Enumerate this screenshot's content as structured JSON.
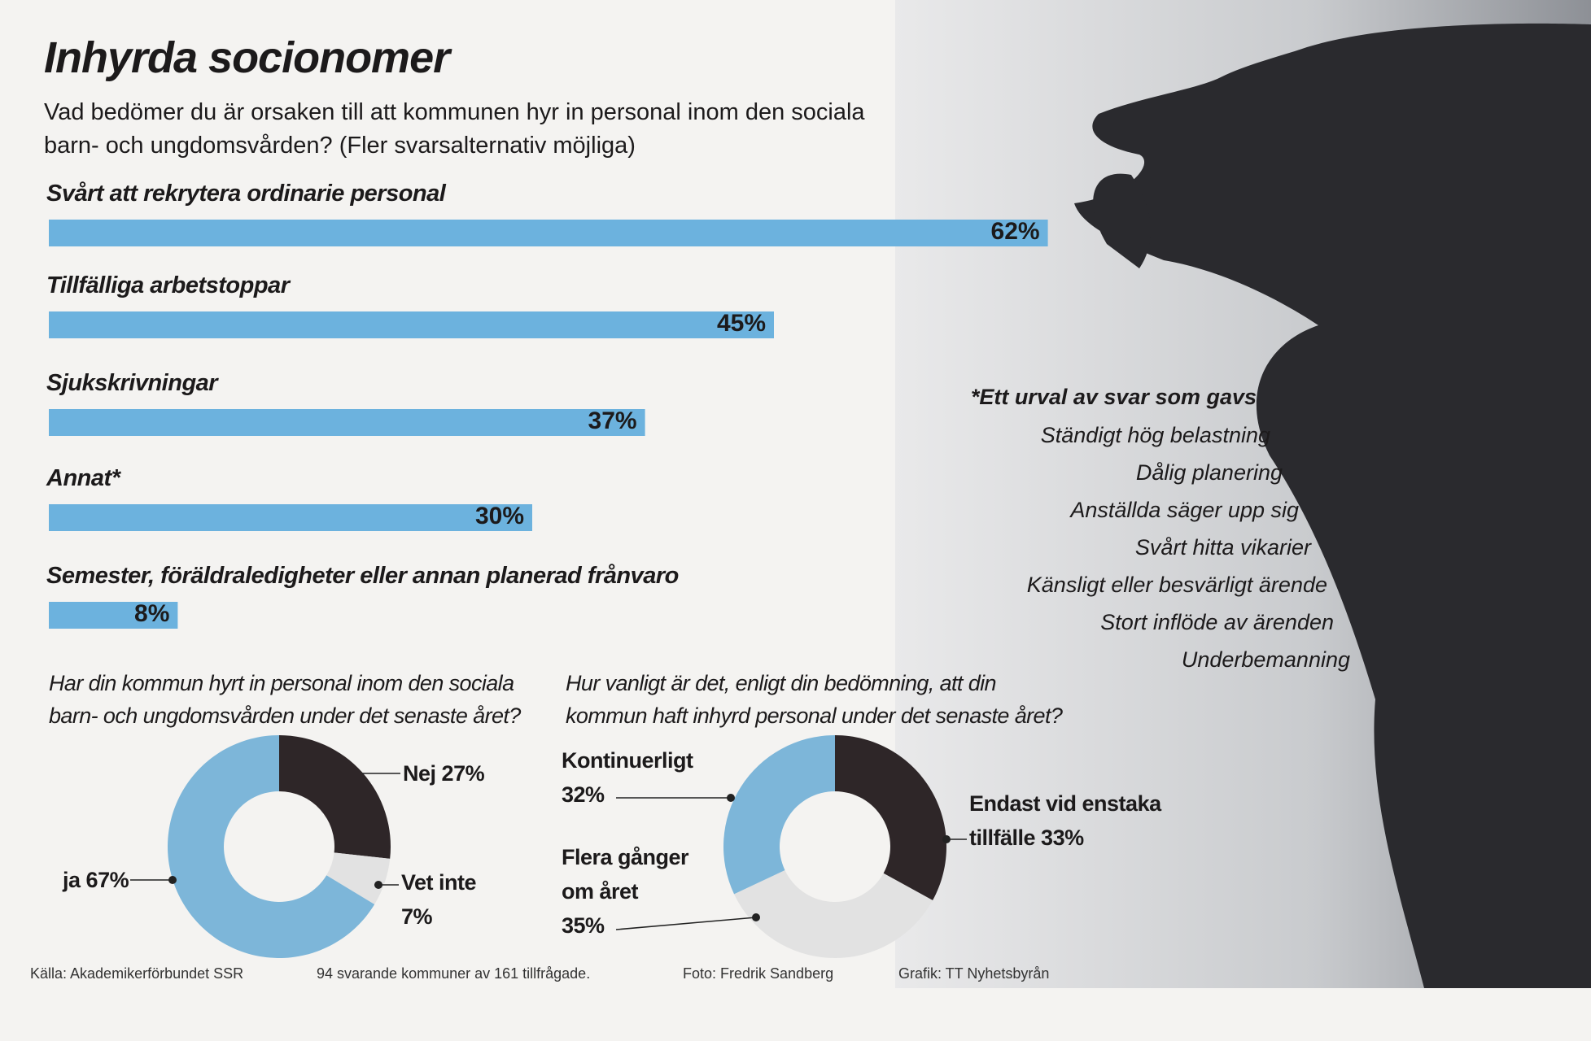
{
  "chart_data": [
    {
      "type": "bar",
      "title": "Inhyrda socionomer",
      "subtitle": "Vad bedömer du är orsaken till att kommunen hyr in personal inom den sociala barn- och ungdomsvården? (Fler svarsalternativ möjliga)",
      "categories": [
        "Svårt att rekrytera ordinarie personal",
        "Tillfälliga arbetstoppar",
        "Sjukskrivningar",
        "Annat*",
        "Semester, föräldraledigheter eller annan planerad frånvaro"
      ],
      "values": [
        62,
        45,
        37,
        30,
        8
      ],
      "value_labels": [
        "62%",
        "45%",
        "37%",
        "30%",
        "8%"
      ],
      "color": "#6cb2de"
    },
    {
      "type": "donut",
      "title": "Har din kommun hyrt in personal inom den sociala barn- och ungdomsvården under det senaste året?",
      "categories": [
        "Nej",
        "Vet inte",
        "ja"
      ],
      "values": [
        27,
        7,
        67
      ],
      "value_labels": [
        "27%",
        "7%",
        "67%"
      ],
      "colors": [
        "#2e2628",
        "#e2e2e2",
        "#7db6d9"
      ]
    },
    {
      "type": "donut",
      "title": "Hur vanligt är det, enligt din bedömning, att din kommun haft inhyrd personal under det senaste året?",
      "categories": [
        "Endast vid enstaka tillfälle",
        "Flera gånger om året",
        "Kontinuerligt"
      ],
      "values": [
        33,
        35,
        32
      ],
      "value_labels": [
        "33%",
        "35%",
        "32%"
      ],
      "colors": [
        "#2e2628",
        "#e2e2e2",
        "#7db6d9"
      ]
    }
  ],
  "notes": {
    "heading": "*Ett urval av svar som gavs",
    "items": [
      "Ständigt hög belastning",
      "Dålig planering",
      "Anställda säger upp sig",
      "Svårt hitta vikarier",
      "Känsligt eller besvärligt ärende",
      "Stort inflöde av ärenden",
      "Underbemanning"
    ]
  },
  "footer": {
    "source": "Källa: Akademikerförbundet SSR",
    "sample": "94 svarande kommuner av 161 tillfrågade.",
    "photo": "Foto: Fredrik Sandberg",
    "graphic": "Grafik: TT Nyhetsbyrån"
  }
}
